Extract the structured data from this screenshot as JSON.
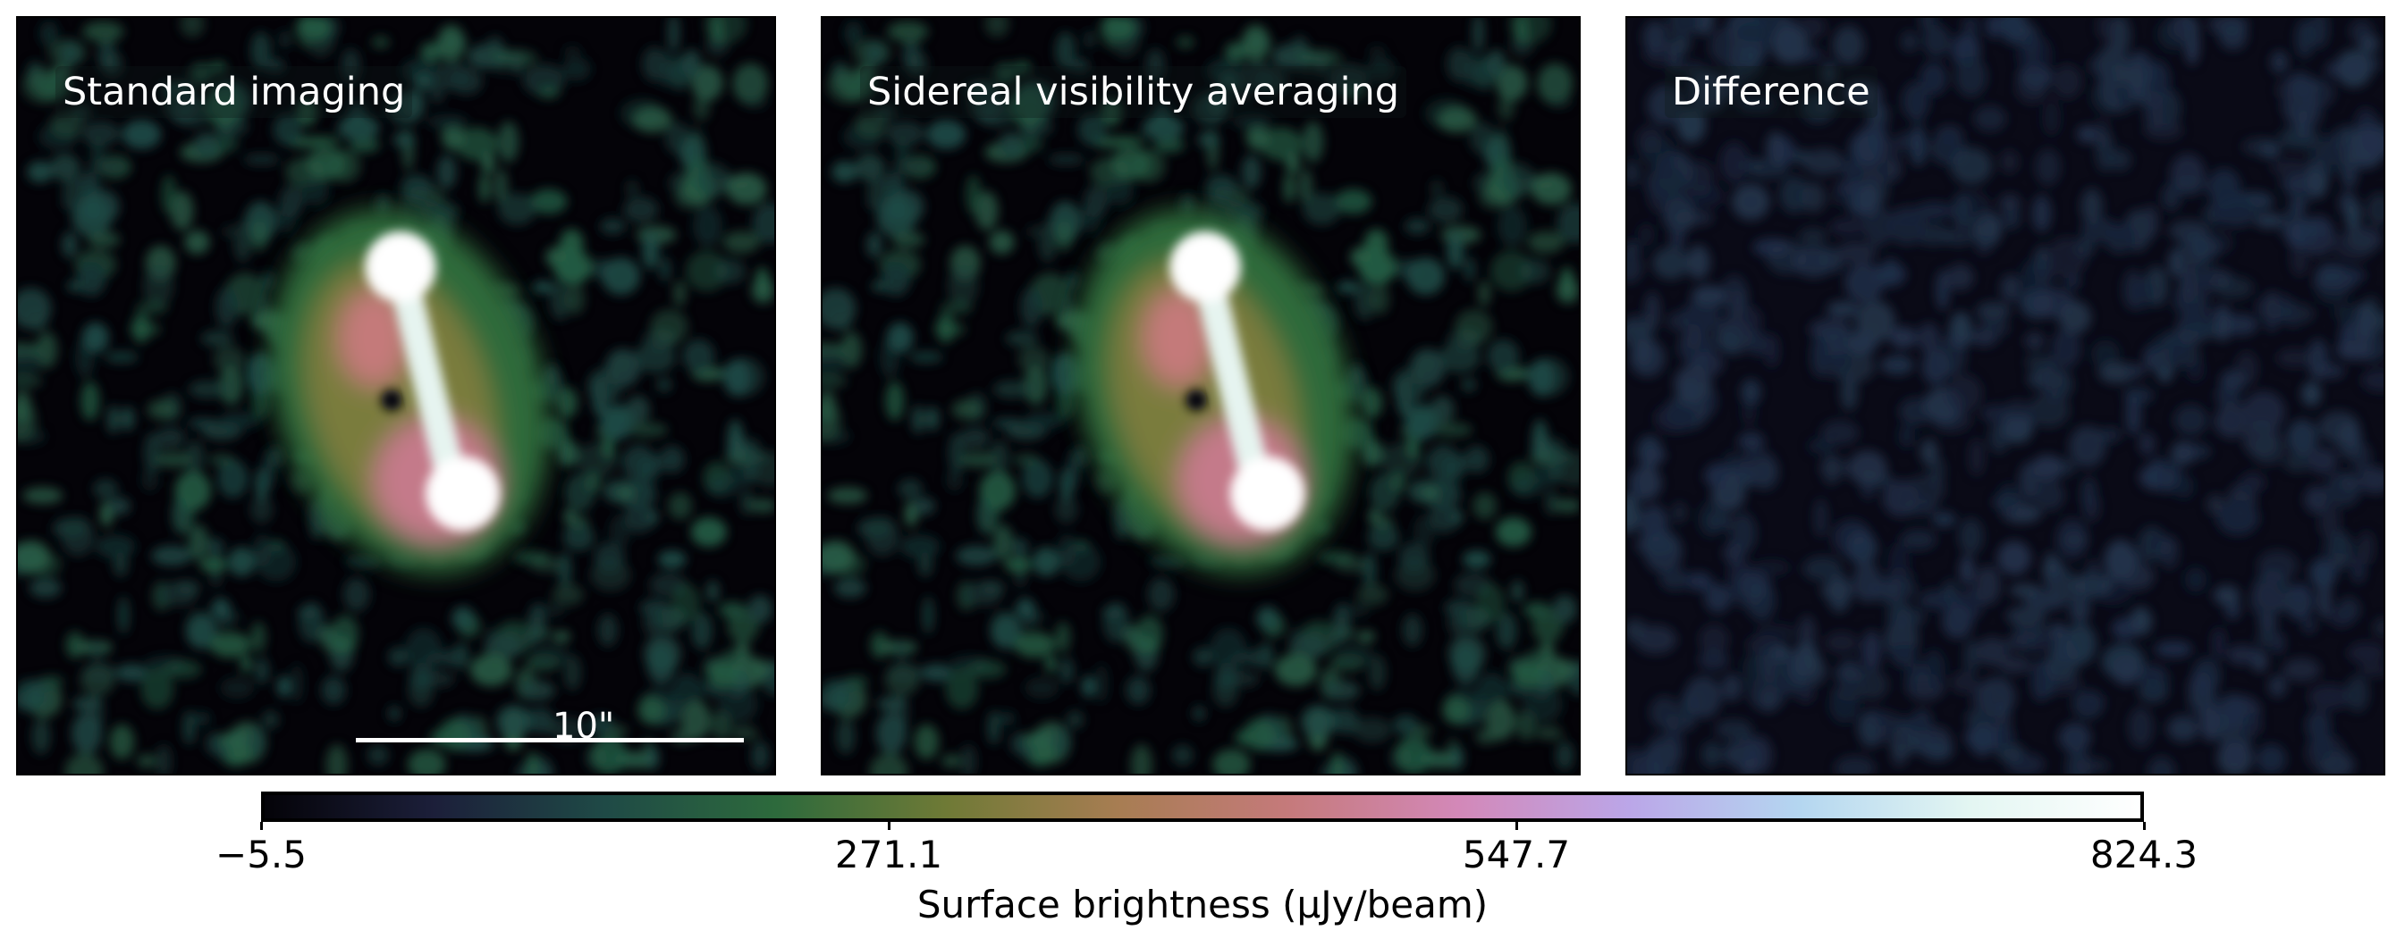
{
  "panels": [
    {
      "label": "Standard imaging",
      "view": "source"
    },
    {
      "label": "Sidereal visibility averaging",
      "view": "source"
    },
    {
      "label": "Difference",
      "view": "residual"
    }
  ],
  "scalebar": {
    "label": "10\""
  },
  "colorbar": {
    "label": "Surface brightness (μJy/beam)",
    "ticks": [
      "−5.5",
      "271.1",
      "547.7",
      "824.3"
    ],
    "tick_values": [
      -5.5,
      271.1,
      547.7,
      824.3
    ],
    "range": [
      -5.5,
      824.3
    ],
    "colormap": [
      "#040308",
      "#1c1f3a",
      "#1f4a46",
      "#2d6a3c",
      "#6f7a36",
      "#a77d52",
      "#c57a7b",
      "#d388b8",
      "#bba6e8",
      "#b4d6f0",
      "#e3f6f2",
      "#ffffff"
    ]
  }
}
